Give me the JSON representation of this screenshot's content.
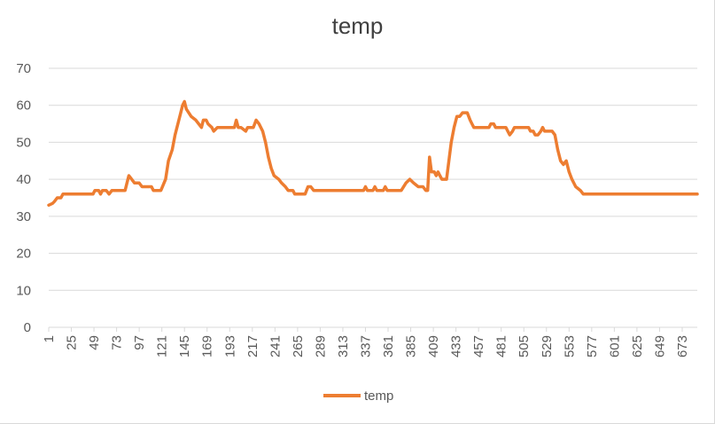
{
  "chart_data": {
    "type": "line",
    "title": "temp",
    "xlabel": "",
    "ylabel": "",
    "ylim": [
      0,
      70
    ],
    "yticks": [
      0,
      10,
      20,
      30,
      40,
      50,
      60,
      70
    ],
    "xlim": [
      1,
      689
    ],
    "xtick_labels": [
      "1",
      "25",
      "49",
      "73",
      "97",
      "121",
      "145",
      "169",
      "193",
      "217",
      "241",
      "265",
      "289",
      "313",
      "337",
      "361",
      "385",
      "409",
      "433",
      "457",
      "481",
      "505",
      "529",
      "553",
      "577",
      "601",
      "625",
      "649",
      "673"
    ],
    "grid": true,
    "legend_position": "bottom",
    "series": [
      {
        "name": "temp",
        "color": "#ed7d31",
        "points": [
          [
            1,
            33
          ],
          [
            5,
            33.5
          ],
          [
            7,
            34
          ],
          [
            10,
            35
          ],
          [
            14,
            35
          ],
          [
            16,
            36
          ],
          [
            48,
            36
          ],
          [
            50,
            37
          ],
          [
            54,
            37
          ],
          [
            56,
            36
          ],
          [
            58,
            37
          ],
          [
            62,
            37
          ],
          [
            65,
            36
          ],
          [
            68,
            37
          ],
          [
            82,
            37
          ],
          [
            84,
            39
          ],
          [
            86,
            41
          ],
          [
            89,
            40
          ],
          [
            92,
            39
          ],
          [
            97,
            39
          ],
          [
            100,
            38
          ],
          [
            110,
            38
          ],
          [
            112,
            37
          ],
          [
            120,
            37
          ],
          [
            125,
            40
          ],
          [
            128,
            45
          ],
          [
            132,
            48
          ],
          [
            135,
            52
          ],
          [
            138,
            55
          ],
          [
            141,
            58
          ],
          [
            143,
            60
          ],
          [
            145,
            61
          ],
          [
            147,
            59
          ],
          [
            152,
            57
          ],
          [
            157,
            56
          ],
          [
            160,
            55
          ],
          [
            163,
            54
          ],
          [
            165,
            56
          ],
          [
            168,
            56
          ],
          [
            170,
            55
          ],
          [
            174,
            54
          ],
          [
            176,
            53
          ],
          [
            180,
            54
          ],
          [
            198,
            54
          ],
          [
            200,
            56
          ],
          [
            202,
            54
          ],
          [
            205,
            54
          ],
          [
            210,
            53
          ],
          [
            212,
            54
          ],
          [
            218,
            54
          ],
          [
            221,
            56
          ],
          [
            224,
            55
          ],
          [
            228,
            53
          ],
          [
            231,
            50
          ],
          [
            234,
            46
          ],
          [
            237,
            43
          ],
          [
            240,
            41
          ],
          [
            245,
            40
          ],
          [
            248,
            39
          ],
          [
            252,
            38
          ],
          [
            255,
            37
          ],
          [
            260,
            37
          ],
          [
            262,
            36
          ],
          [
            267,
            36
          ],
          [
            273,
            36
          ],
          [
            276,
            38
          ],
          [
            279,
            38
          ],
          [
            282,
            37
          ],
          [
            335,
            37
          ],
          [
            337,
            38
          ],
          [
            339,
            37
          ],
          [
            345,
            37
          ],
          [
            347,
            38
          ],
          [
            349,
            37
          ],
          [
            356,
            37
          ],
          [
            358,
            38
          ],
          [
            360,
            37
          ],
          [
            375,
            37
          ],
          [
            380,
            39
          ],
          [
            384,
            40
          ],
          [
            388,
            39
          ],
          [
            393,
            38
          ],
          [
            398,
            38
          ],
          [
            401,
            37
          ],
          [
            403,
            37
          ],
          [
            405,
            46
          ],
          [
            407,
            42
          ],
          [
            410,
            42
          ],
          [
            412,
            41
          ],
          [
            414,
            42
          ],
          [
            416,
            41
          ],
          [
            418,
            40
          ],
          [
            423,
            40
          ],
          [
            428,
            50
          ],
          [
            431,
            54
          ],
          [
            434,
            57
          ],
          [
            437,
            57
          ],
          [
            440,
            58
          ],
          [
            445,
            58
          ],
          [
            448,
            56
          ],
          [
            450,
            55
          ],
          [
            452,
            54
          ],
          [
            468,
            54
          ],
          [
            470,
            55
          ],
          [
            473,
            55
          ],
          [
            475,
            54
          ],
          [
            486,
            54
          ],
          [
            488,
            53
          ],
          [
            490,
            52
          ],
          [
            493,
            53
          ],
          [
            495,
            54
          ],
          [
            510,
            54
          ],
          [
            512,
            53
          ],
          [
            515,
            53
          ],
          [
            517,
            52
          ],
          [
            520,
            52
          ],
          [
            523,
            53
          ],
          [
            525,
            54
          ],
          [
            527,
            53
          ],
          [
            535,
            53
          ],
          [
            538,
            52
          ],
          [
            541,
            48
          ],
          [
            544,
            45
          ],
          [
            547,
            44
          ],
          [
            550,
            45
          ],
          [
            553,
            42
          ],
          [
            556,
            40
          ],
          [
            560,
            38
          ],
          [
            565,
            37
          ],
          [
            568,
            36
          ],
          [
            689,
            36
          ]
        ]
      }
    ]
  }
}
